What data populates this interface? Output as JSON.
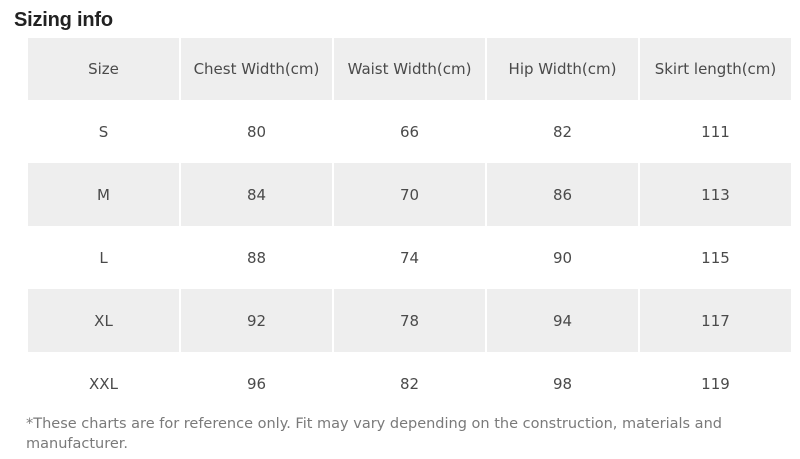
{
  "title": "Sizing info",
  "table": {
    "headers": [
      "Size",
      "Chest Width(cm)",
      "Waist Width(cm)",
      "Hip Width(cm)",
      "Skirt length(cm)"
    ],
    "rows": [
      [
        "S",
        "80",
        "66",
        "82",
        "111"
      ],
      [
        "M",
        "84",
        "70",
        "86",
        "113"
      ],
      [
        "L",
        "88",
        "74",
        "90",
        "115"
      ],
      [
        "XL",
        "92",
        "78",
        "94",
        "117"
      ],
      [
        "XXL",
        "96",
        "82",
        "98",
        "119"
      ]
    ]
  },
  "footnote": "*These charts are for reference only. Fit may vary depending on the construction, materials and manufacturer.",
  "colors": {
    "shaded_row": "#eeeeee",
    "text": "#4a4a4a",
    "title": "#222222",
    "footnote": "#7a7a7a"
  }
}
